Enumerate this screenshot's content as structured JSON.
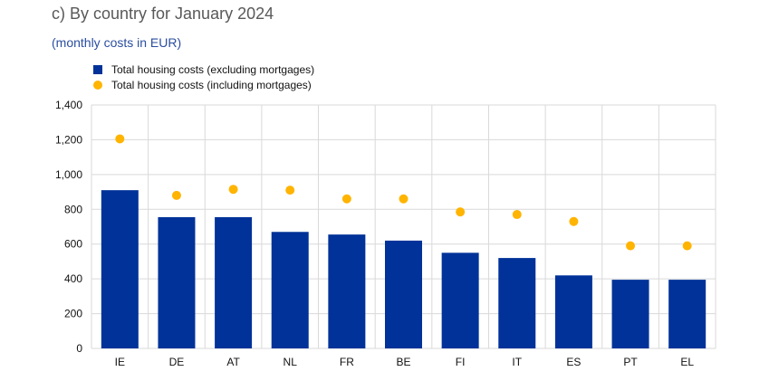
{
  "title": "c) By country for January 2024",
  "subtitle": "(monthly costs in EUR)",
  "colors": {
    "bar": "#003299",
    "dot": "#ffb400",
    "grid": "#d9d9d9"
  },
  "chart_data": {
    "type": "bar",
    "categories": [
      "IE",
      "DE",
      "AT",
      "NL",
      "FR",
      "BE",
      "FI",
      "IT",
      "ES",
      "PT",
      "EL"
    ],
    "series": [
      {
        "name": "Total housing costs (excluding mortgages)",
        "kind": "bar",
        "values": [
          910,
          755,
          755,
          670,
          655,
          620,
          550,
          520,
          420,
          395,
          395
        ]
      },
      {
        "name": "Total housing costs (including mortgages)",
        "kind": "scatter",
        "values": [
          1205,
          880,
          915,
          910,
          860,
          860,
          785,
          770,
          730,
          590,
          590
        ]
      }
    ],
    "yticks": [
      "0",
      "200",
      "400",
      "600",
      "800",
      "1,000",
      "1,200",
      "1,400"
    ],
    "ylim": [
      0,
      1400
    ],
    "grid": true,
    "legend_position": "top-left"
  }
}
